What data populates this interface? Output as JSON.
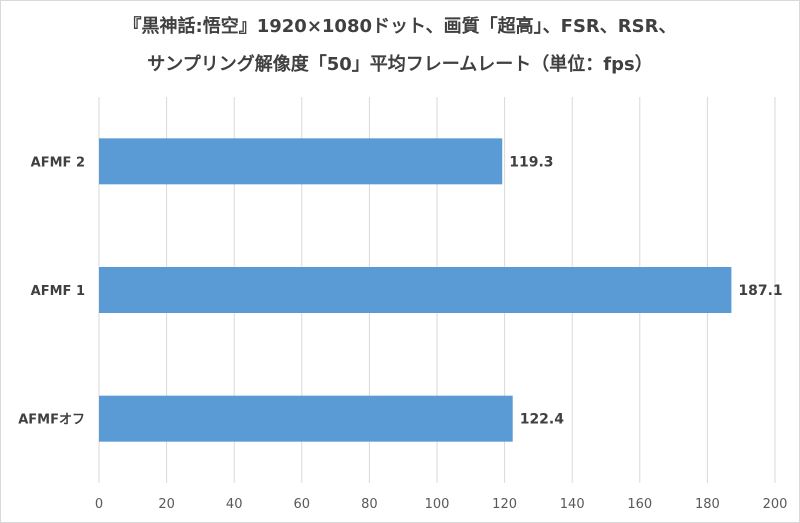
{
  "chart_data": {
    "type": "bar",
    "orientation": "horizontal",
    "title_lines": [
      "『黒神話:悟空』1920×1080ドット、画質「超高」、FSR、RSR、",
      "サンプリング解像度「50」平均フレームレート（単位：fps）"
    ],
    "categories": [
      "AFMF 2",
      "AFMF 1",
      "AFMFオフ"
    ],
    "values": [
      119.3,
      187.1,
      122.4
    ],
    "data_labels": [
      "119.3",
      "187.1",
      "122.4"
    ],
    "xlim": [
      0,
      200
    ],
    "x_ticks": [
      0,
      20,
      40,
      60,
      80,
      100,
      120,
      140,
      160,
      180,
      200
    ],
    "grid": true,
    "legend": "none",
    "colors": {
      "bar": "#5b9bd5",
      "grid": "#d9d9d9",
      "text": "#404040"
    }
  }
}
